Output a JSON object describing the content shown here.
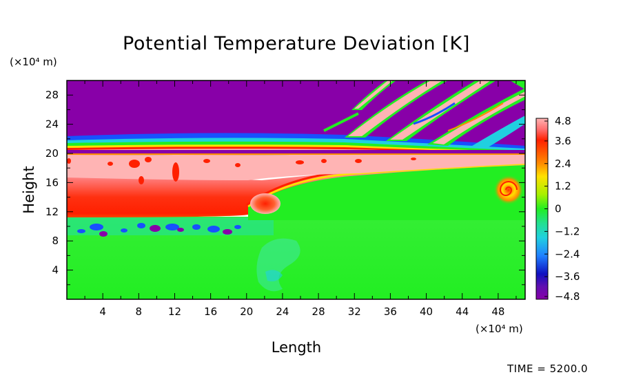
{
  "chart_data": {
    "type": "heatmap",
    "title": "Potential Temperature Deviation [K]",
    "xlabel": "Length",
    "ylabel": "Height",
    "x_unit": "(×10⁴ m)",
    "y_unit": "(×10⁴ m)",
    "xlim": [
      0,
      51
    ],
    "ylim": [
      0,
      30
    ],
    "x_ticks": [
      "4",
      "8",
      "12",
      "16",
      "20",
      "24",
      "28",
      "32",
      "36",
      "40",
      "44",
      "48"
    ],
    "y_ticks": [
      "4",
      "8",
      "12",
      "16",
      "20",
      "24",
      "28"
    ],
    "colorbar": {
      "min": -4.8,
      "max": 4.8,
      "tick_labels": [
        "4.8",
        "3.6",
        "2.4",
        "1.2",
        "0",
        "−1.2",
        "−2.4",
        "−3.6",
        "−4.8"
      ]
    },
    "colors": {
      "very_negative": "#8800a8",
      "negative": "#2050ff",
      "slightly_negative": "#20d0c0",
      "zero": "#22ee22",
      "slightly_positive": "#ffe000",
      "positive": "#ff2000",
      "very_positive": "#ffb4b4"
    },
    "regions": [
      {
        "name": "upper stratosphere",
        "x": [
          0,
          51
        ],
        "y": [
          22,
          30
        ],
        "value": -4.8
      },
      {
        "name": "upper layer streaks",
        "x": [
          0,
          51
        ],
        "y": [
          20.5,
          23
        ],
        "value": 2.0
      },
      {
        "name": "warm layer",
        "x": [
          0,
          51
        ],
        "y": [
          16,
          20
        ],
        "value": 4.8
      },
      {
        "name": "warm core",
        "x": [
          0,
          20
        ],
        "y": [
          11,
          16
        ],
        "value": 4.0
      },
      {
        "name": "cold pockets",
        "x": [
          2,
          20
        ],
        "y": [
          9,
          11
        ],
        "value": -3.0
      },
      {
        "name": "lower domain",
        "x": [
          0,
          51
        ],
        "y": [
          0,
          11
        ],
        "value": 0.0
      },
      {
        "name": "vortex",
        "x": [
          47,
          51
        ],
        "y": [
          14,
          16
        ],
        "value": 2.4
      },
      {
        "name": "gravity waves",
        "x": [
          27,
          51
        ],
        "y": [
          23,
          30
        ],
        "value": 4.8
      }
    ]
  },
  "footer": {
    "time_label": "TIME = 5200.0"
  }
}
